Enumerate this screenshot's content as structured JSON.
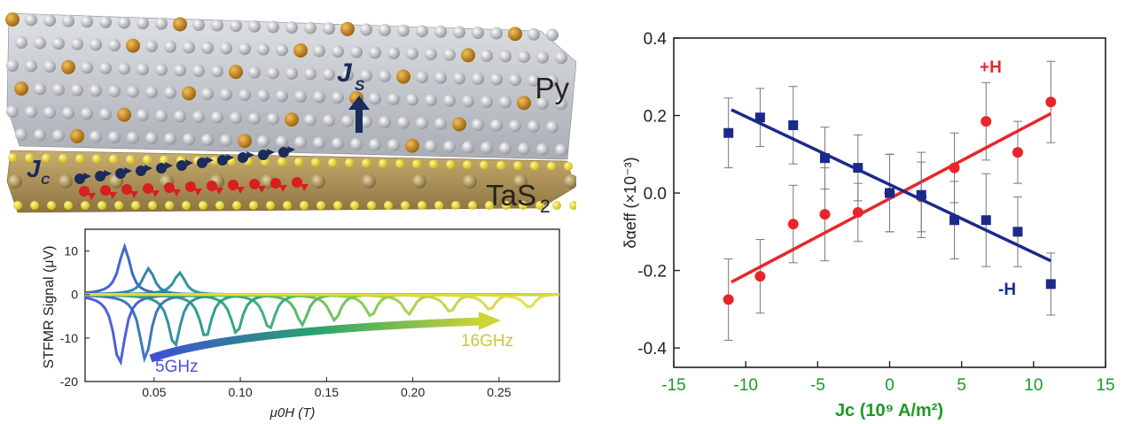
{
  "illustration": {
    "labels": {
      "top_layer": "Py",
      "bottom_layer_base": "TaS",
      "bottom_layer_sub": "2",
      "js": "J",
      "js_sub": "S",
      "jc": "J",
      "jc_sub": "C"
    },
    "colors": {
      "py_atoms": "#b9bcc2",
      "py_dopant": "#c98a1b",
      "tas2_sulfur": "#f0e21a",
      "tas2_tantalum": "#a89060",
      "spin_up": "#1a2b5c",
      "spin_down": "#d81e1e",
      "arrow": "#1a2b5c"
    }
  },
  "chart_data": [
    {
      "type": "line",
      "title": "",
      "xlabel": "μ0H (T)",
      "ylabel": "STFMR Signal (μV)",
      "xlim": [
        0.01,
        0.285
      ],
      "ylim": [
        -20,
        15
      ],
      "xticks": [
        "0.05",
        "0.10",
        "0.15",
        "0.20",
        "0.25"
      ],
      "xtick_values": [
        0.05,
        0.1,
        0.15,
        0.2,
        0.25
      ],
      "yticks": [
        "10",
        "0",
        "-10",
        "-20"
      ],
      "ytick_values": [
        10,
        0,
        -10,
        -20
      ],
      "annotations": [
        "5GHz",
        "16GHz"
      ],
      "resonances": [
        {
          "field": 0.03,
          "amplitude": -16,
          "color": "#3d4fd6"
        },
        {
          "field": 0.033,
          "amplitude": 11,
          "color": "#2f55c8"
        },
        {
          "field": 0.045,
          "amplitude": -15,
          "color": "#2868b8"
        },
        {
          "field": 0.047,
          "amplitude": 6,
          "color": "#2477a8"
        },
        {
          "field": 0.062,
          "amplitude": -12,
          "color": "#1f8598"
        },
        {
          "field": 0.065,
          "amplitude": 5,
          "color": "#1e8a90"
        },
        {
          "field": 0.08,
          "amplitude": -10,
          "color": "#1c9386"
        },
        {
          "field": 0.098,
          "amplitude": -9,
          "color": "#1f9c78"
        },
        {
          "field": 0.117,
          "amplitude": -8,
          "color": "#2fa86a"
        },
        {
          "field": 0.136,
          "amplitude": -7,
          "color": "#47b35a"
        },
        {
          "field": 0.155,
          "amplitude": -6,
          "color": "#64bd4c"
        },
        {
          "field": 0.176,
          "amplitude": -5,
          "color": "#82c541"
        },
        {
          "field": 0.198,
          "amplitude": -4.5,
          "color": "#9fcc3a"
        },
        {
          "field": 0.222,
          "amplitude": -4,
          "color": "#bcd235"
        },
        {
          "field": 0.245,
          "amplitude": -3.5,
          "color": "#d4d635"
        },
        {
          "field": 0.268,
          "amplitude": -3,
          "color": "#e6da3c"
        }
      ],
      "colors": {
        "low": "#3d4fd6",
        "high": "#e6da3c"
      }
    },
    {
      "type": "scatter",
      "title": "",
      "xlabel": "Jc (10⁹ A/m²)",
      "ylabel": "δαeff (×10⁻³)",
      "xlim": [
        -15,
        15
      ],
      "ylim": [
        -0.45,
        0.4
      ],
      "xticks": [
        "-15",
        "-10",
        "-5",
        "0",
        "5",
        "10",
        "15"
      ],
      "xtick_values": [
        -15,
        -10,
        -5,
        0,
        5,
        10,
        15
      ],
      "yticks": [
        "0.4",
        "0.2",
        "0.0",
        "-0.2",
        "-0.4"
      ],
      "ytick_values": [
        0.4,
        0.2,
        0.0,
        -0.2,
        -0.4
      ],
      "grid": false,
      "series": [
        {
          "name": "+H",
          "color": "#e8262a",
          "marker": "circle",
          "x": [
            -11.2,
            -9.0,
            -6.7,
            -4.5,
            -2.2,
            0,
            2.2,
            4.5,
            6.7,
            8.9,
            11.2
          ],
          "y": [
            -0.275,
            -0.215,
            -0.08,
            -0.055,
            -0.05,
            0.0,
            -0.01,
            0.065,
            0.185,
            0.105,
            0.235
          ],
          "err": [
            0.105,
            0.095,
            0.1,
            0.12,
            0.075,
            0.1,
            0.09,
            0.09,
            0.1,
            0.08,
            0.105
          ],
          "fit": {
            "x": [
              -11,
              11.2
            ],
            "y": [
              -0.23,
              0.205
            ]
          }
        },
        {
          "name": "-H",
          "color": "#1b2a8a",
          "marker": "square",
          "x": [
            -11.2,
            -9.0,
            -6.7,
            -4.5,
            -2.2,
            0,
            2.2,
            4.5,
            6.7,
            8.9,
            11.2
          ],
          "y": [
            0.155,
            0.195,
            0.175,
            0.09,
            0.065,
            0.0,
            -0.005,
            -0.07,
            -0.07,
            -0.1,
            -0.235
          ],
          "err": [
            0.09,
            0.075,
            0.1,
            0.08,
            0.085,
            0.1,
            0.11,
            0.1,
            0.12,
            0.09,
            0.08
          ],
          "fit": {
            "x": [
              -11,
              11.2
            ],
            "y": [
              0.215,
              -0.175
            ]
          }
        }
      ],
      "series_labels": [
        "+H",
        "-H"
      ],
      "colors": {
        "axis_text": "#1c9a24",
        "axis": "#222222"
      }
    }
  ]
}
